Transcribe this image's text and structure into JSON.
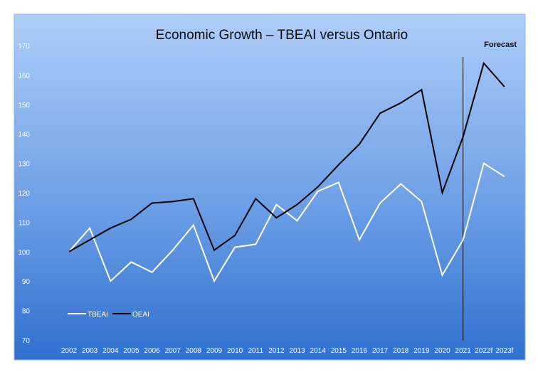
{
  "chart_data": {
    "type": "line",
    "title": "Economic Growth – TBEAI versus Ontario",
    "annotation": "Forecast",
    "annotation_category": "2021",
    "categories": [
      "2002",
      "2003",
      "2004",
      "2005",
      "2006",
      "2007",
      "2008",
      "2009",
      "2010",
      "2011",
      "2012",
      "2013",
      "2014",
      "2015",
      "2016",
      "2017",
      "2018",
      "2019",
      "2020",
      "2021",
      "2022f",
      "2023f"
    ],
    "yticks": [
      70,
      80,
      90,
      100,
      110,
      120,
      130,
      140,
      150,
      160,
      170
    ],
    "ylim": [
      70,
      170
    ],
    "grid": false,
    "legend_position": "bottom-left",
    "series": [
      {
        "name": "TBEAI",
        "color": "#ffffff",
        "values": [
          100,
          108,
          90,
          96.5,
          93,
          100.5,
          109,
          90,
          101.5,
          102.5,
          116,
          110.5,
          120.5,
          123.5,
          104,
          116.5,
          123,
          117,
          92,
          104,
          130,
          125.5
        ]
      },
      {
        "name": "OEAI",
        "color": "#000000",
        "values": [
          100,
          104,
          108,
          111,
          116.5,
          117,
          118,
          100.5,
          105.5,
          118,
          111.5,
          116,
          122,
          129.5,
          136.5,
          147,
          150.5,
          155,
          120,
          139,
          164,
          156
        ]
      }
    ],
    "colors": {
      "background_top": "#aecdf8",
      "background_bottom": "#2f70d0",
      "frame": "#8cb4ea",
      "forecast_line": "#111111"
    }
  }
}
